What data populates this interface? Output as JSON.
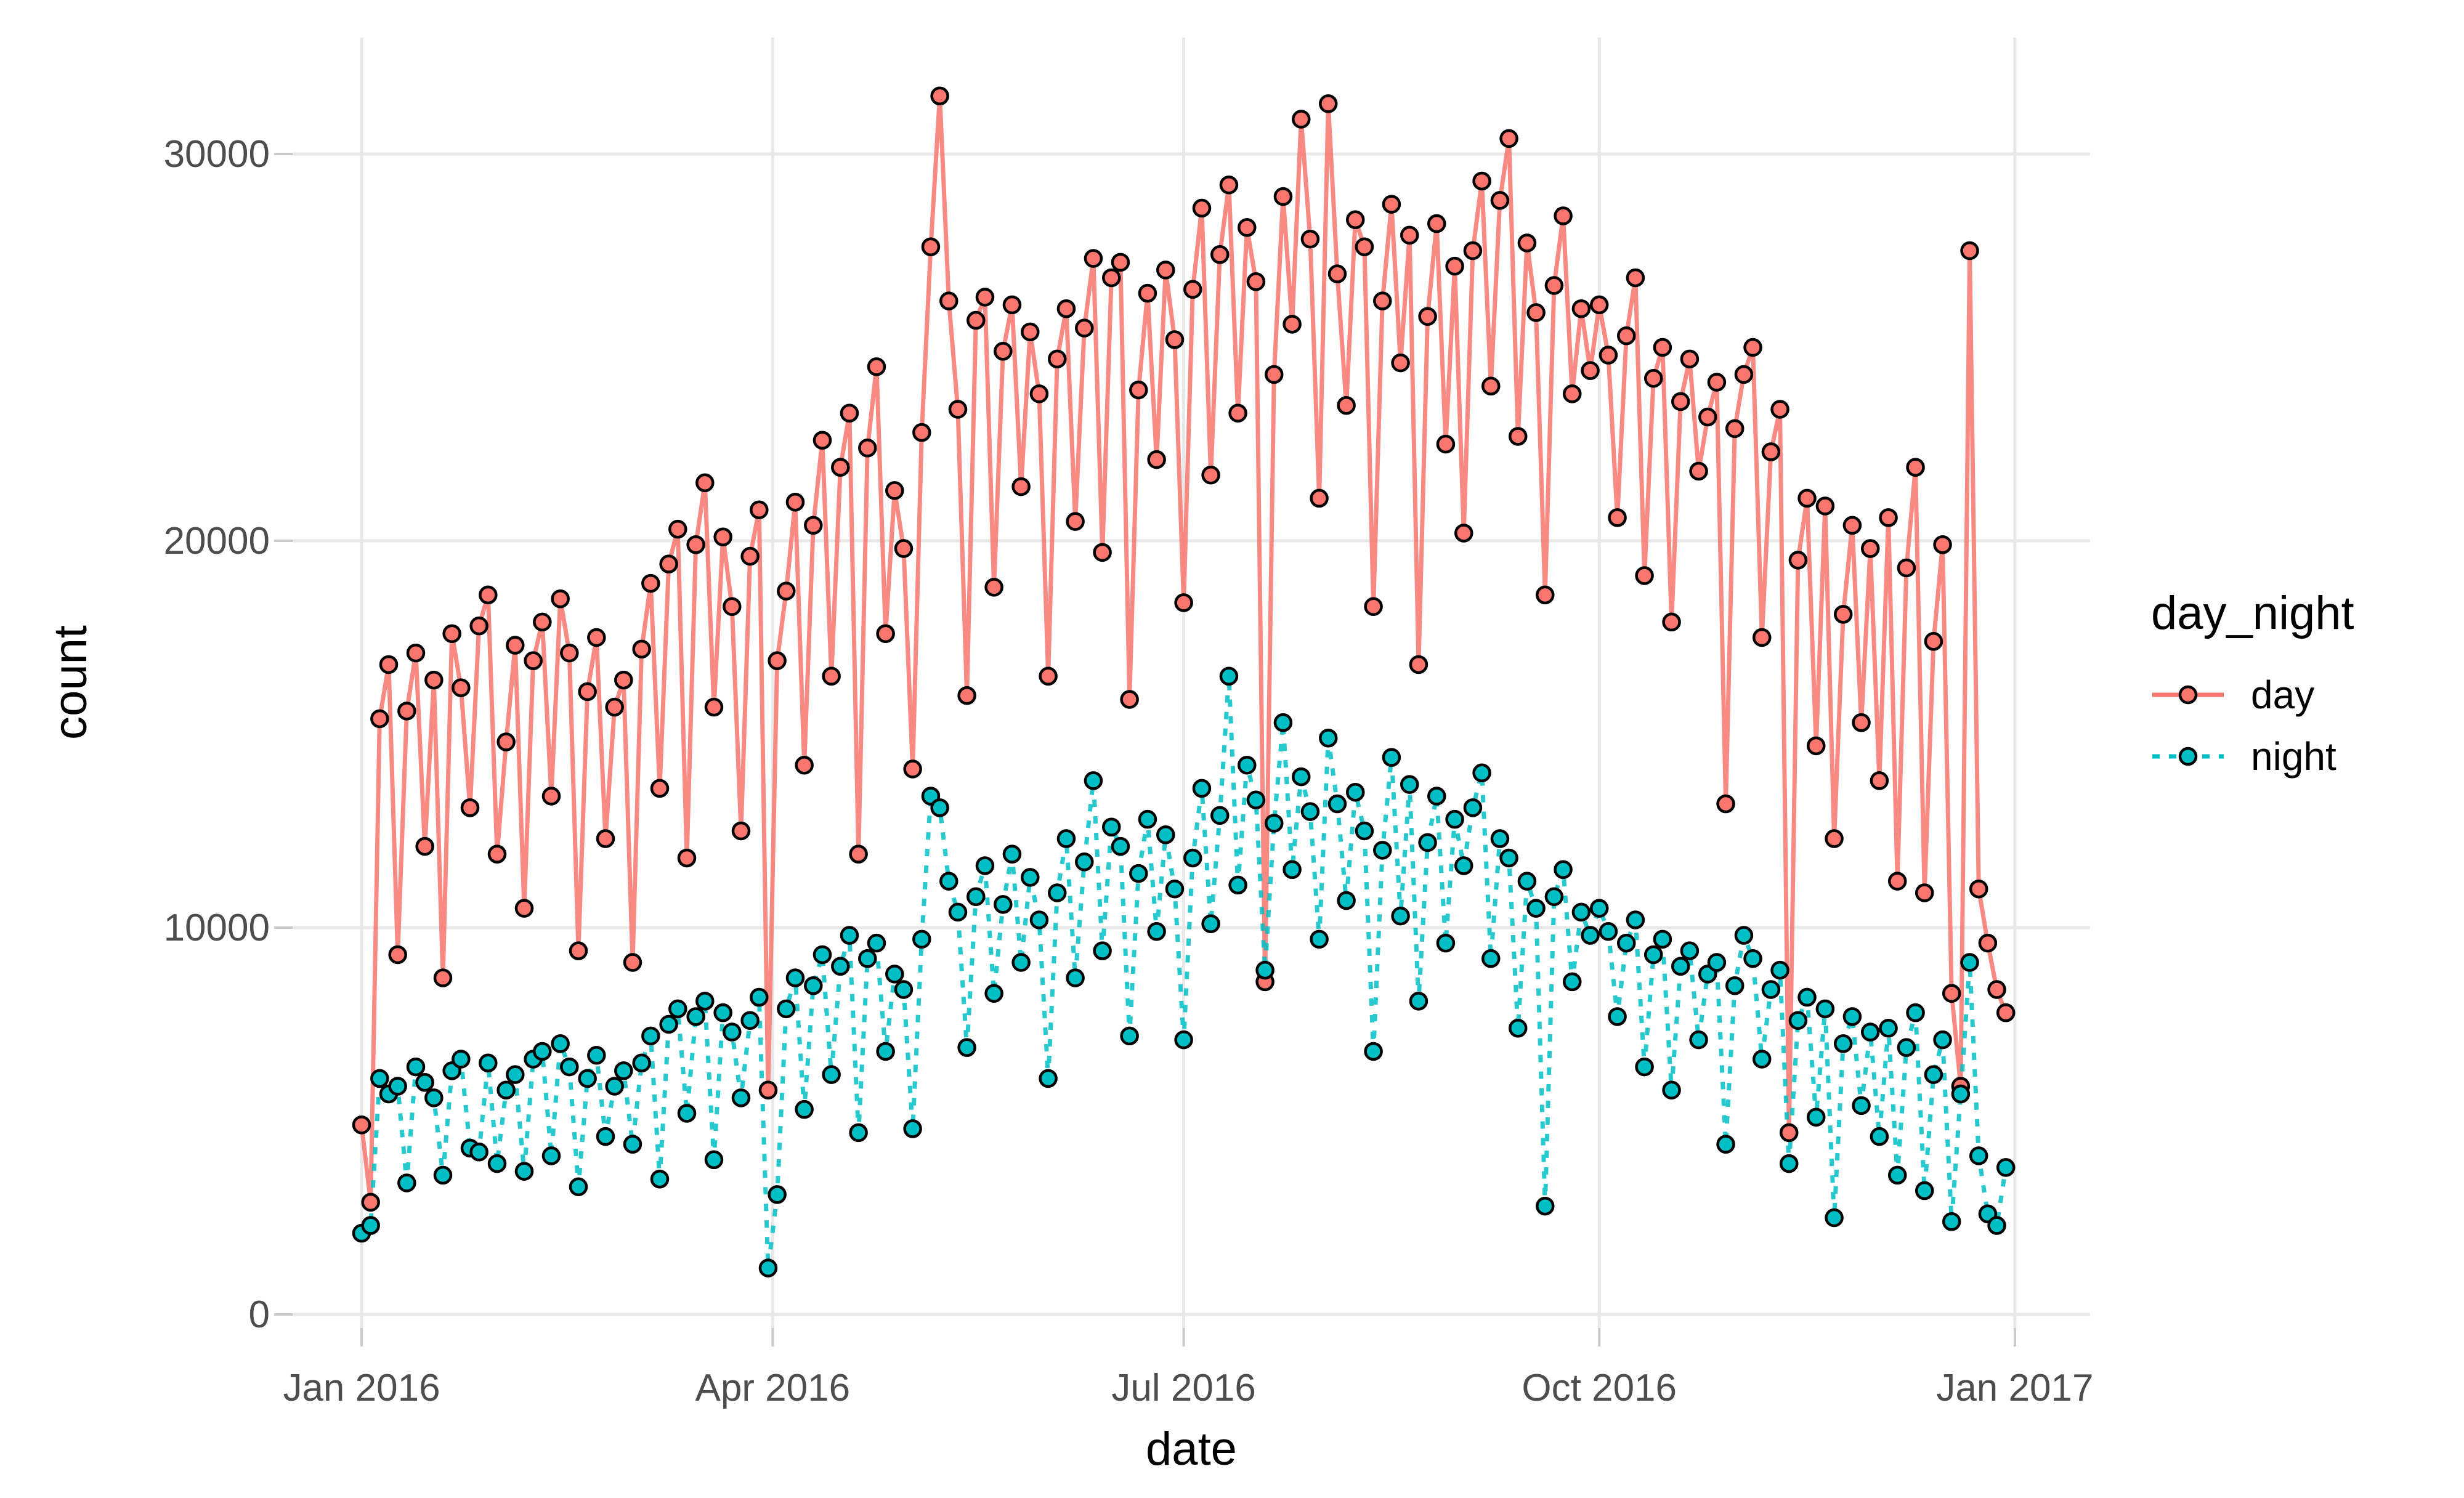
{
  "chart_data": {
    "type": "line",
    "xlabel": "date",
    "ylabel": "count",
    "legend_title": "day_night",
    "legend_position": "right",
    "grid": "major-only",
    "background": "#FFFFFF",
    "gridline_color": "#E8E8E8",
    "tick_mark_color": "#C9C9C9",
    "tick_label_color": "#4D4D4D",
    "axis_title_color": "#000000",
    "point_outline": "#000000",
    "x_unit": "days since 2016-01-01",
    "sampling": "daily series approximated at 2-day intervals; values estimated from pixels",
    "x_ticks": [
      {
        "label": "Jan 2016",
        "day": 0
      },
      {
        "label": "Apr 2016",
        "day": 91
      },
      {
        "label": "Jul 2016",
        "day": 182
      },
      {
        "label": "Oct 2016",
        "day": 274
      },
      {
        "label": "Jan 2017",
        "day": 366
      }
    ],
    "y_ticks": [
      {
        "label": "0",
        "value": 0
      },
      {
        "label": "10000",
        "value": 10000
      },
      {
        "label": "20000",
        "value": 20000
      },
      {
        "label": "30000",
        "value": 30000
      }
    ],
    "ylim": [
      -350,
      33000
    ],
    "xlim_days": [
      -15,
      384
    ],
    "days": [
      0,
      2,
      4,
      6,
      8,
      10,
      12,
      14,
      16,
      18,
      20,
      22,
      24,
      26,
      28,
      30,
      32,
      34,
      36,
      38,
      40,
      42,
      44,
      46,
      48,
      50,
      52,
      54,
      56,
      58,
      60,
      62,
      64,
      66,
      68,
      70,
      72,
      74,
      76,
      78,
      80,
      82,
      84,
      86,
      88,
      90,
      92,
      94,
      96,
      98,
      100,
      102,
      104,
      106,
      108,
      110,
      112,
      114,
      116,
      118,
      120,
      122,
      124,
      126,
      128,
      130,
      132,
      134,
      136,
      138,
      140,
      142,
      144,
      146,
      148,
      150,
      152,
      154,
      156,
      158,
      160,
      162,
      164,
      166,
      168,
      170,
      172,
      174,
      176,
      178,
      180,
      182,
      184,
      186,
      188,
      190,
      192,
      194,
      196,
      198,
      200,
      202,
      204,
      206,
      208,
      210,
      212,
      214,
      216,
      218,
      220,
      222,
      224,
      226,
      228,
      230,
      232,
      234,
      236,
      238,
      240,
      242,
      244,
      246,
      248,
      250,
      252,
      254,
      256,
      258,
      260,
      262,
      264,
      266,
      268,
      270,
      272,
      274,
      276,
      278,
      280,
      282,
      284,
      286,
      288,
      290,
      292,
      294,
      296,
      298,
      300,
      302,
      304,
      306,
      308,
      310,
      312,
      314,
      316,
      318,
      320,
      322,
      324,
      326,
      328,
      330,
      332,
      334,
      336,
      338,
      340,
      342,
      344,
      346,
      348,
      350,
      352,
      354,
      356,
      358,
      360,
      362,
      364
    ],
    "series": [
      {
        "name": "day",
        "color": "#F8766D",
        "linetype": "solid",
        "values": [
          4900,
          2900,
          15400,
          16800,
          9300,
          15600,
          17100,
          12100,
          16400,
          8700,
          17600,
          16200,
          13100,
          17800,
          18600,
          11900,
          14800,
          17300,
          10500,
          16900,
          17900,
          13400,
          18500,
          17100,
          9400,
          16100,
          17500,
          12300,
          15700,
          16400,
          9100,
          17200,
          18900,
          13600,
          19400,
          20300,
          11800,
          19900,
          21500,
          15700,
          20100,
          18300,
          12500,
          19600,
          20800,
          5800,
          16900,
          18700,
          21000,
          14200,
          20400,
          22600,
          16500,
          21900,
          23300,
          11900,
          22400,
          24500,
          17600,
          21300,
          19800,
          14100,
          22800,
          27600,
          31500,
          26200,
          23400,
          16000,
          25700,
          26300,
          18800,
          24900,
          26100,
          21400,
          25400,
          23800,
          16500,
          24700,
          26000,
          20500,
          25500,
          27300,
          19700,
          26800,
          27200,
          15900,
          23900,
          26400,
          22100,
          27000,
          25200,
          18400,
          26500,
          28600,
          21700,
          27400,
          29200,
          23300,
          28100,
          26700,
          8600,
          24300,
          28900,
          25600,
          30900,
          27800,
          21100,
          31300,
          26900,
          23500,
          28300,
          27600,
          18300,
          26200,
          28700,
          24600,
          27900,
          16800,
          25800,
          28200,
          22500,
          27100,
          20200,
          27500,
          29300,
          24000,
          28800,
          30400,
          22700,
          27700,
          25900,
          18600,
          26600,
          28400,
          23800,
          26000,
          24400,
          26100,
          24800,
          20600,
          25300,
          26800,
          19100,
          24200,
          25000,
          17900,
          23600,
          24700,
          21800,
          23200,
          24100,
          13200,
          22900,
          24300,
          25000,
          17500,
          22300,
          23400,
          4700,
          19500,
          21100,
          14700,
          20900,
          12300,
          18100,
          20400,
          15300,
          19800,
          13800,
          20600,
          11200,
          19300,
          21900,
          10900,
          17400,
          19900,
          8300,
          5900,
          27500,
          11000,
          9600,
          8400,
          7800
        ]
      },
      {
        "name": "night",
        "color": "#00BFC4",
        "linetype": "dashed",
        "values": [
          2100,
          2300,
          6100,
          5700,
          5900,
          3400,
          6400,
          6000,
          5600,
          3600,
          6300,
          6600,
          4300,
          4200,
          6500,
          3900,
          5800,
          6200,
          3700,
          6600,
          6800,
          4100,
          7000,
          6400,
          3300,
          6100,
          6700,
          4600,
          5900,
          6300,
          4400,
          6500,
          7200,
          3500,
          7500,
          7900,
          5200,
          7700,
          8100,
          4000,
          7800,
          7300,
          5600,
          7600,
          8200,
          1200,
          3100,
          7900,
          8700,
          5300,
          8500,
          9300,
          6200,
          9000,
          9800,
          4700,
          9200,
          9600,
          6800,
          8800,
          8400,
          4800,
          9700,
          13400,
          13100,
          11200,
          10400,
          6900,
          10800,
          11600,
          8300,
          10600,
          11900,
          9100,
          11300,
          10200,
          6100,
          10900,
          12300,
          8700,
          11700,
          13800,
          9400,
          12600,
          12100,
          7200,
          11400,
          12800,
          9900,
          12400,
          11000,
          7100,
          11800,
          13600,
          10100,
          12900,
          16500,
          11100,
          14200,
          13300,
          8900,
          12700,
          15300,
          11500,
          13900,
          13000,
          9700,
          14900,
          13200,
          10700,
          13500,
          12500,
          6800,
          12000,
          14400,
          10300,
          13700,
          8100,
          12200,
          13400,
          9600,
          12800,
          11600,
          13100,
          14000,
          9200,
          12300,
          11800,
          7400,
          11200,
          10500,
          2800,
          10800,
          11500,
          8600,
          10400,
          9800,
          10500,
          9900,
          7700,
          9600,
          10200,
          6400,
          9300,
          9700,
          5800,
          9000,
          9400,
          7100,
          8800,
          9100,
          4400,
          8500,
          9800,
          9200,
          6600,
          8400,
          8900,
          3900,
          7600,
          8200,
          5100,
          7900,
          2500,
          7000,
          7700,
          5400,
          7300,
          4600,
          7400,
          3600,
          6900,
          7800,
          3200,
          6200,
          7100,
          2400,
          5700,
          9100,
          4100,
          2600,
          2300,
          3800
        ]
      }
    ]
  }
}
